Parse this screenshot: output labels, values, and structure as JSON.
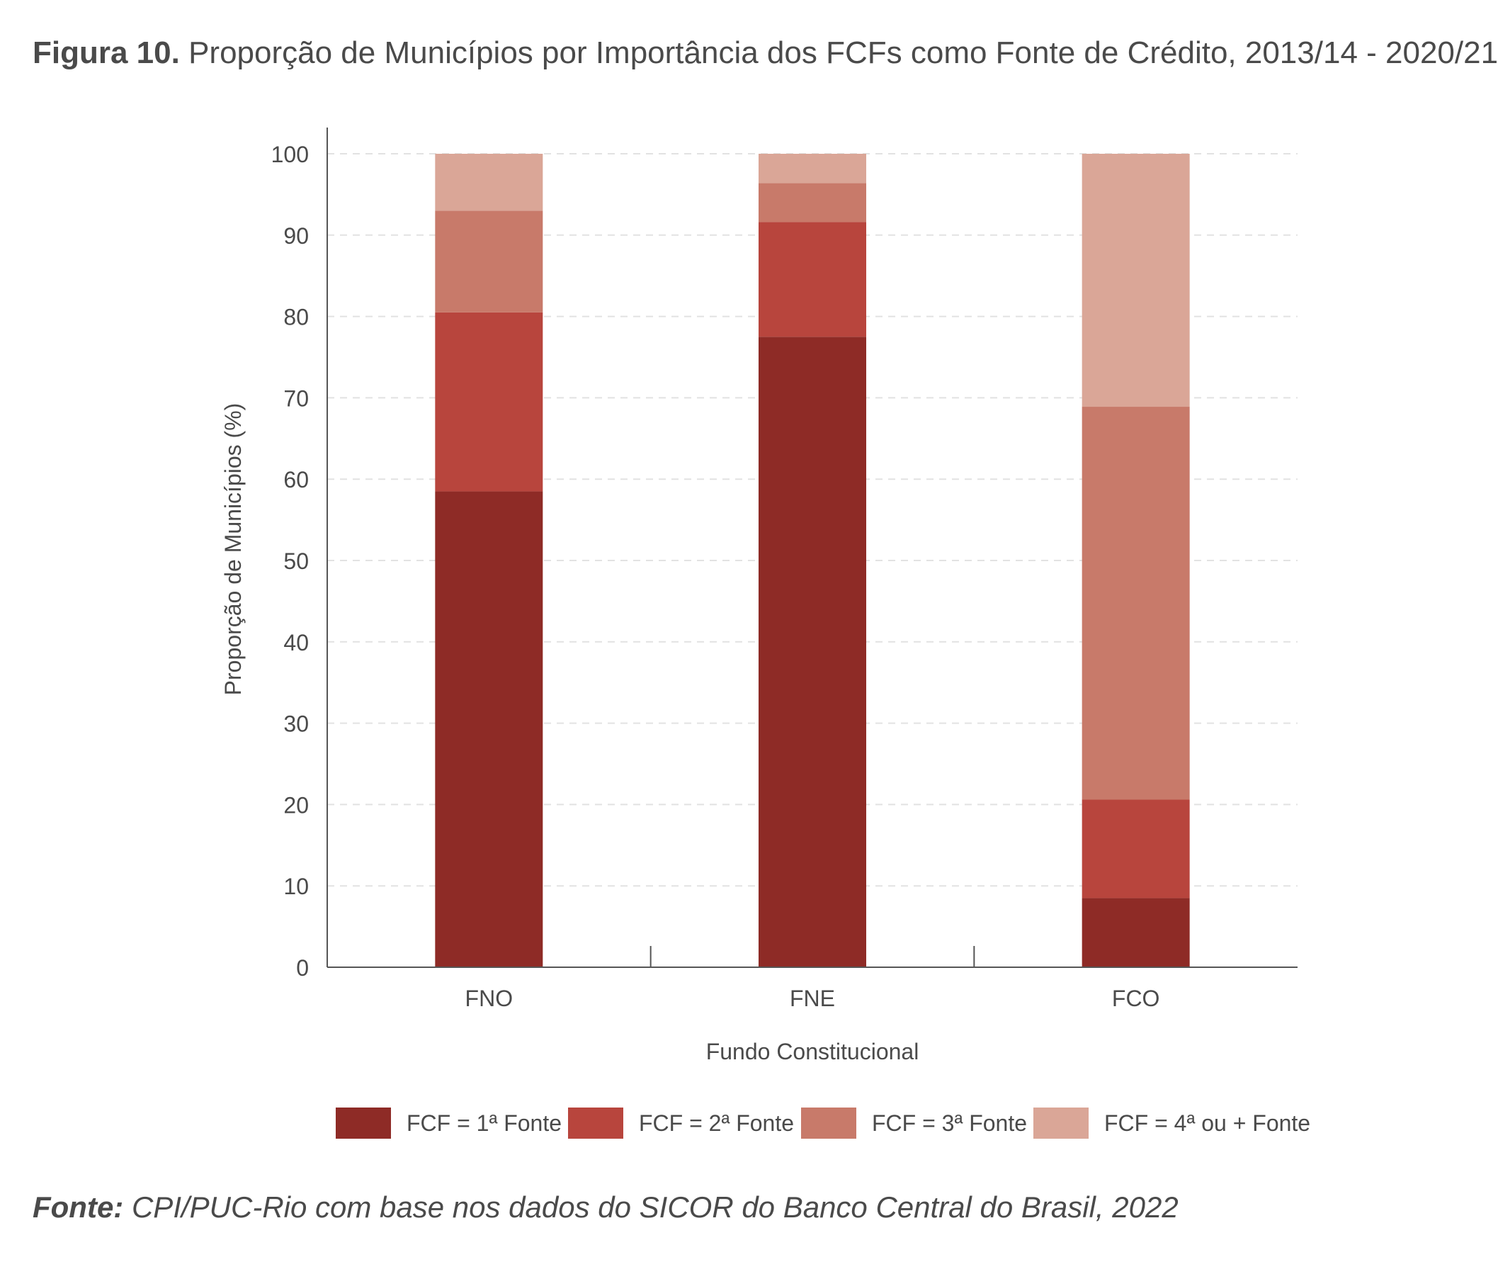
{
  "figure": {
    "label": "Figura 10.",
    "title": "Proporção de Municípios por Importância dos FCFs como Fonte de Crédito, 2013/14 - 2020/21"
  },
  "source": {
    "label": "Fonte:",
    "text": "CPI/PUC-Rio com base nos dados do SICOR do Banco Central do Brasil, 2022"
  },
  "colors": {
    "series": [
      "#8e2b26",
      "#b8453d",
      "#c87a6a",
      "#daa697"
    ],
    "axis": "#555555",
    "grid": "#e2e2e2",
    "text": "#4a4a4a"
  },
  "chart_data": {
    "type": "bar",
    "stacked": true,
    "xlabel": "Fundo Constitucional",
    "ylabel": "Proporção de Municípios (%)",
    "ylim": [
      0,
      100
    ],
    "yticks": [
      0,
      10,
      20,
      30,
      40,
      50,
      60,
      70,
      80,
      90,
      100
    ],
    "grid": "horizontal dashed",
    "legend_position": "bottom",
    "categories": [
      "FNO",
      "FNE",
      "FCO"
    ],
    "series": [
      {
        "name": "FCF = 1ª Fonte",
        "values": [
          58.5,
          77.5,
          8.5
        ]
      },
      {
        "name": "FCF = 2ª Fonte",
        "values": [
          22.0,
          14.1,
          12.1
        ]
      },
      {
        "name": "FCF = 3ª Fonte",
        "values": [
          12.5,
          4.8,
          48.3
        ]
      },
      {
        "name": "FCF = 4ª ou + Fonte",
        "values": [
          7.0,
          3.6,
          31.1
        ]
      }
    ]
  }
}
